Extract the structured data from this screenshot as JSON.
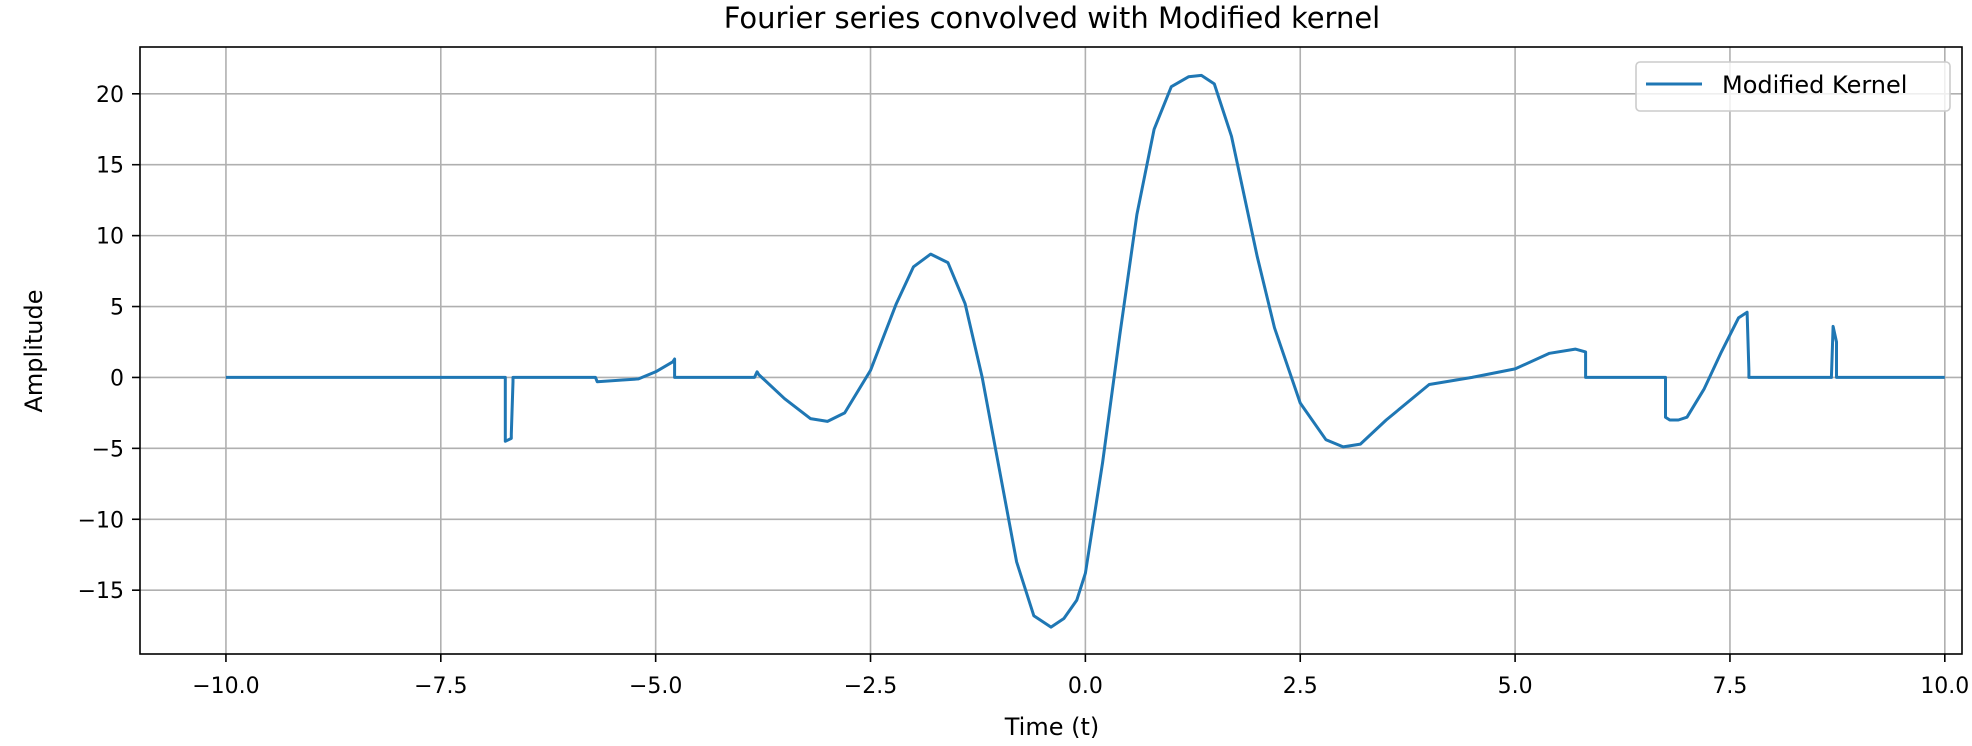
{
  "chart_data": {
    "type": "line",
    "title": "Fourier series convolved with Modified kernel",
    "xlabel": "Time (t)",
    "ylabel": "Amplitude",
    "xlim": [
      -11.0,
      10.2
    ],
    "ylim": [
      -19.5,
      23.3
    ],
    "xticks": [
      -10.0,
      -7.5,
      -5.0,
      -2.5,
      0.0,
      2.5,
      5.0,
      7.5,
      10.0
    ],
    "xtick_labels": [
      "−10.0",
      "−7.5",
      "−5.0",
      "−2.5",
      "0.0",
      "2.5",
      "5.0",
      "7.5",
      "10.0"
    ],
    "yticks": [
      -15,
      -10,
      -5,
      0,
      5,
      10,
      15,
      20
    ],
    "ytick_labels": [
      "−15",
      "−10",
      "−5",
      "0",
      "5",
      "10",
      "15",
      "20"
    ],
    "grid": true,
    "legend_position": "top-right",
    "series": [
      {
        "name": "Modified Kernel",
        "color": "#1f77b4",
        "x": [
          -10.0,
          -6.75,
          -6.75,
          -6.68,
          -6.68,
          -6.66,
          -6.66,
          -5.7,
          -5.68,
          -5.2,
          -5.0,
          -4.8,
          -4.78,
          -4.78,
          -3.85,
          -3.82,
          -3.8,
          -3.5,
          -3.2,
          -3.0,
          -2.8,
          -2.5,
          -2.2,
          -2.0,
          -1.8,
          -1.6,
          -1.4,
          -1.2,
          -1.0,
          -0.8,
          -0.6,
          -0.4,
          -0.25,
          -0.1,
          0.0,
          0.2,
          0.4,
          0.6,
          0.8,
          1.0,
          1.2,
          1.35,
          1.5,
          1.7,
          2.0,
          2.2,
          2.5,
          2.8,
          3.0,
          3.2,
          3.5,
          4.0,
          4.5,
          5.0,
          5.4,
          5.7,
          5.82,
          5.82,
          6.75,
          6.75,
          6.8,
          6.9,
          7.0,
          7.2,
          7.4,
          7.6,
          7.7,
          7.72,
          7.72,
          8.68,
          8.7,
          8.74,
          8.74,
          10.0
        ],
        "y": [
          0,
          0,
          -4.5,
          -4.3,
          -4.0,
          -0.3,
          0,
          0,
          -0.3,
          -0.1,
          0.4,
          1.1,
          1.3,
          0,
          0,
          0.4,
          0.2,
          -1.5,
          -2.9,
          -3.1,
          -2.5,
          0.5,
          5.2,
          7.8,
          8.7,
          8.1,
          5.2,
          0.0,
          -6.5,
          -13.0,
          -16.8,
          -17.6,
          -17.0,
          -15.7,
          -13.8,
          -6.0,
          3.0,
          11.5,
          17.5,
          20.5,
          21.2,
          21.3,
          20.7,
          17.0,
          8.5,
          3.5,
          -1.8,
          -4.4,
          -4.9,
          -4.7,
          -3.0,
          -0.5,
          0.0,
          0.6,
          1.7,
          2.0,
          1.8,
          0,
          0,
          -2.8,
          -3.0,
          -3.0,
          -2.8,
          -0.8,
          1.8,
          4.2,
          4.6,
          0.5,
          0,
          0,
          3.6,
          2.5,
          0,
          0
        ]
      }
    ]
  }
}
